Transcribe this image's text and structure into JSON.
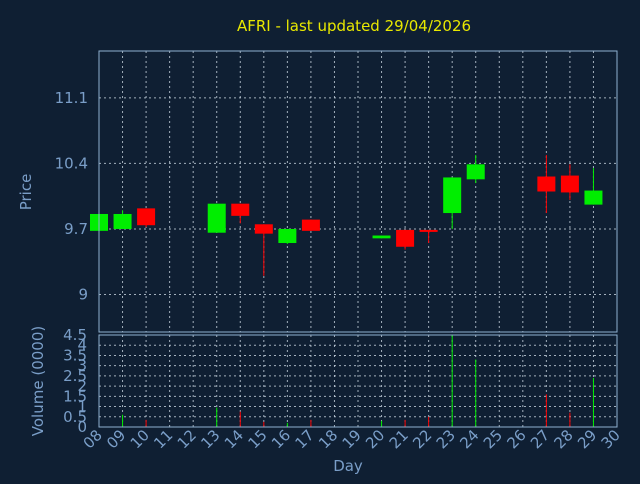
{
  "chart_data": {
    "type": "candlestick",
    "title": "AFRI - last updated 29/04/2026",
    "xlabel": "Day",
    "price": {
      "ylabel": "Price",
      "yticks": [
        "9",
        "9.7",
        "10.4",
        "11.1"
      ],
      "ylim": [
        8.6,
        11.6
      ],
      "grid": true
    },
    "volume": {
      "ylabel": "Volume (0000)",
      "yticks": [
        "0",
        "0.5",
        "1",
        "1.5",
        "2",
        "2.5",
        "3",
        "3.5",
        "4",
        "4.5"
      ],
      "ylim": [
        0,
        4.5
      ],
      "grid": true
    },
    "x_ticks": [
      "08",
      "09",
      "10",
      "11",
      "12",
      "13",
      "14",
      "15",
      "16",
      "17",
      "18",
      "19",
      "20",
      "21",
      "22",
      "23",
      "24",
      "25",
      "26",
      "27",
      "28",
      "29",
      "30"
    ],
    "candles": [
      {
        "day": "08",
        "open": 9.68,
        "close": 9.86,
        "high": 9.86,
        "low": 9.68,
        "volume": 0.0
      },
      {
        "day": "09",
        "open": 9.7,
        "close": 9.86,
        "high": 9.9,
        "low": 9.7,
        "volume": 0.6
      },
      {
        "day": "10",
        "open": 9.92,
        "close": 9.74,
        "high": 9.92,
        "low": 9.72,
        "volume": 0.35
      },
      {
        "day": "13",
        "open": 9.66,
        "close": 9.97,
        "high": 9.97,
        "low": 9.66,
        "volume": 0.95
      },
      {
        "day": "14",
        "open": 9.97,
        "close": 9.84,
        "high": 9.97,
        "low": 9.76,
        "volume": 0.75
      },
      {
        "day": "15",
        "open": 9.75,
        "close": 9.65,
        "high": 9.75,
        "low": 9.2,
        "volume": 0.25
      },
      {
        "day": "16",
        "open": 9.55,
        "close": 9.7,
        "high": 9.7,
        "low": 9.54,
        "volume": 0.2
      },
      {
        "day": "17",
        "open": 9.8,
        "close": 9.68,
        "high": 9.8,
        "low": 9.68,
        "volume": 0.35
      },
      {
        "day": "20",
        "open": 9.6,
        "close": 9.63,
        "high": 9.63,
        "low": 9.6,
        "volume": 0.3
      },
      {
        "day": "21",
        "open": 9.69,
        "close": 9.51,
        "high": 9.69,
        "low": 9.48,
        "volume": 0.35
      },
      {
        "day": "22",
        "open": 9.69,
        "close": 9.67,
        "high": 9.69,
        "low": 9.55,
        "volume": 0.5
      },
      {
        "day": "23",
        "open": 9.87,
        "close": 10.25,
        "high": 10.25,
        "low": 9.7,
        "volume": 4.5
      },
      {
        "day": "24",
        "open": 10.23,
        "close": 10.39,
        "high": 10.49,
        "low": 10.19,
        "volume": 3.3
      },
      {
        "day": "27",
        "open": 10.26,
        "close": 10.1,
        "high": 10.49,
        "low": 9.87,
        "volume": 1.6
      },
      {
        "day": "28",
        "open": 10.27,
        "close": 10.09,
        "high": 10.39,
        "low": 10.01,
        "volume": 0.7
      },
      {
        "day": "29",
        "open": 9.96,
        "close": 10.11,
        "high": 10.35,
        "low": 9.96,
        "volume": 2.4
      }
    ],
    "colors": {
      "background": "#0f1f33",
      "plot_border": "#8fb0d0",
      "grid": "#c8d4e0",
      "title": "#e8e800",
      "axis_text": "#7a9ec8",
      "up": "#00ee00",
      "down": "#ff0000"
    }
  }
}
